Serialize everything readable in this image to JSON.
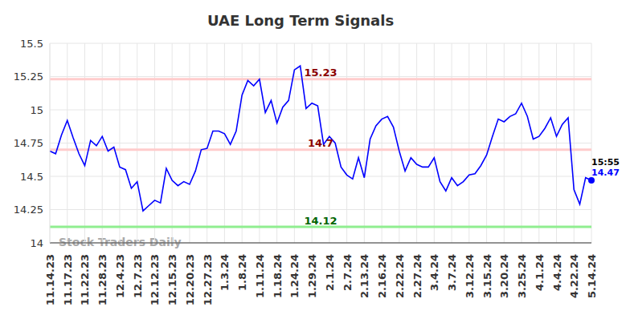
{
  "chart_data": {
    "type": "line",
    "title": "UAE Long Term Signals",
    "watermark": "Stock Traders Daily",
    "categories": [
      "11.14.23",
      null,
      null,
      "11.17.23",
      null,
      null,
      "11.22.23",
      null,
      null,
      "11.28.23",
      null,
      null,
      "12.4.23",
      null,
      null,
      "12.7.23",
      null,
      null,
      "12.12.23",
      null,
      null,
      "12.15.23",
      null,
      null,
      "12.20.23",
      null,
      null,
      "12.27.23",
      null,
      null,
      "1.3.24",
      null,
      null,
      "1.8.24",
      null,
      null,
      "1.11.24",
      null,
      null,
      "1.18.24",
      null,
      null,
      "1.24.24",
      null,
      null,
      "1.29.24",
      null,
      null,
      "2.1.24",
      null,
      null,
      "2.7.24",
      null,
      null,
      "2.13.24",
      null,
      null,
      "2.16.24",
      null,
      null,
      "2.22.24",
      null,
      null,
      "2.27.24",
      null,
      null,
      "3.4.24",
      null,
      null,
      "3.7.24",
      null,
      null,
      "3.12.24",
      null,
      null,
      "3.15.24",
      null,
      null,
      "3.20.24",
      null,
      null,
      "3.25.24",
      null,
      null,
      "4.1.24",
      null,
      null,
      "4.4.24",
      null,
      null,
      "4.22.24",
      null,
      null,
      "5.14.24"
    ],
    "values": [
      14.69,
      14.67,
      14.81,
      14.92,
      14.79,
      14.67,
      14.58,
      14.77,
      14.73,
      14.8,
      14.69,
      14.72,
      14.57,
      14.55,
      14.41,
      14.46,
      14.24,
      14.28,
      14.32,
      14.3,
      14.56,
      14.47,
      14.43,
      14.46,
      14.44,
      14.54,
      14.7,
      14.71,
      14.84,
      14.84,
      14.82,
      14.74,
      14.84,
      15.11,
      15.22,
      15.18,
      15.23,
      14.98,
      15.07,
      14.9,
      15.02,
      15.07,
      15.3,
      15.33,
      15.01,
      15.05,
      15.03,
      14.74,
      14.8,
      14.75,
      14.57,
      14.51,
      14.48,
      14.64,
      14.49,
      14.78,
      14.88,
      14.93,
      14.95,
      14.87,
      14.69,
      14.54,
      14.64,
      14.59,
      14.57,
      14.57,
      14.64,
      14.46,
      14.39,
      14.49,
      14.43,
      14.46,
      14.51,
      14.52,
      14.58,
      14.66,
      14.8,
      14.93,
      14.91,
      14.95,
      14.97,
      15.05,
      14.95,
      14.78,
      14.8,
      14.86,
      14.94,
      14.8,
      14.89,
      14.94,
      14.4,
      14.29,
      14.49,
      14.47
    ],
    "color": "#0000ff",
    "ylim": [
      14,
      15.5
    ],
    "yticks": [
      14,
      14.25,
      14.5,
      14.75,
      15,
      15.25,
      15.5
    ],
    "grid": true,
    "reference_lines": [
      {
        "value": 15.23,
        "label": "15.23",
        "color": "#ffcccc",
        "label_color": "#8b0000"
      },
      {
        "value": 14.7,
        "label": "14.7",
        "color": "#ffcccc",
        "label_color": "#8b0000"
      },
      {
        "value": 14.12,
        "label": "14.12",
        "color": "#90ee90",
        "label_color": "#006400"
      }
    ],
    "end_label": "15:55",
    "data_labels": true
  }
}
